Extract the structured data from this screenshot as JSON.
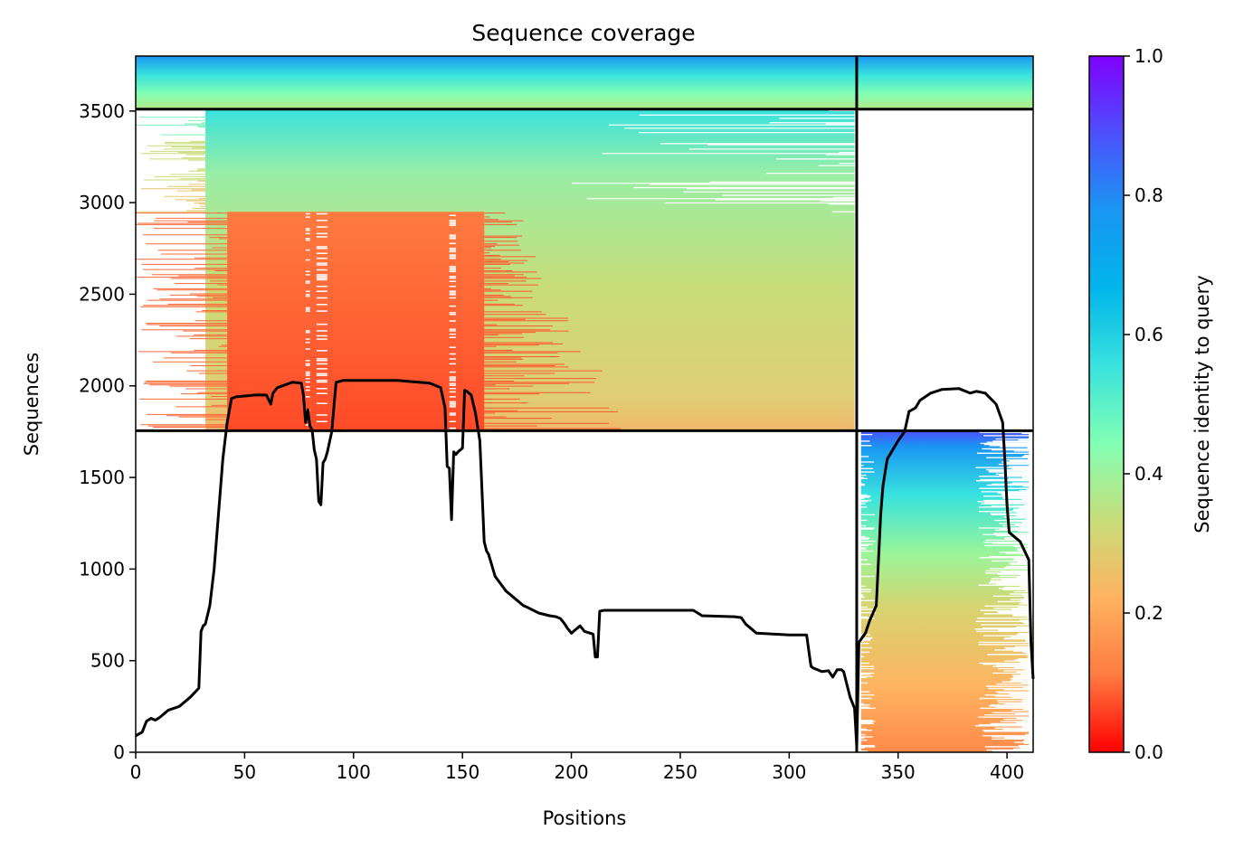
{
  "chart_data": {
    "type": "heatmap",
    "title": "Sequence coverage",
    "xlabel": "Positions",
    "ylabel": "Sequences",
    "xlim": [
      0,
      412
    ],
    "ylim": [
      0,
      3800
    ],
    "xticks": [
      0,
      50,
      100,
      150,
      200,
      250,
      300,
      350,
      400
    ],
    "yticks": [
      0,
      500,
      1000,
      1500,
      2000,
      2500,
      3000,
      3500
    ],
    "colorbar": {
      "label": "Sequence identity to query",
      "colormap": "rainbow_r",
      "range": [
        0.0,
        1.0
      ],
      "ticks": [
        "0.0",
        "0.2",
        "0.4",
        "0.6",
        "0.8",
        "1.0"
      ],
      "stops": [
        "#ff0000",
        "#ff7b41",
        "#ffb360",
        "#c8dd79",
        "#81ffb4",
        "#38e2de",
        "#00b5eb",
        "#1996f3",
        "#4d50fc",
        "#8000ff"
      ]
    },
    "separators": {
      "horizontal": [
        1755,
        3510
      ],
      "vertical": [
        331
      ]
    },
    "coverage_blocks": [
      {
        "rows": [
          1755,
          3510
        ],
        "positions": [
          0,
          331
        ],
        "identity_top": 0.6,
        "identity_bottom": 0.3,
        "note_region": "upper-left block"
      },
      {
        "rows": [
          3510,
          3800
        ],
        "positions": [
          0,
          331
        ],
        "identity_top": 0.8,
        "identity_bottom": 0.45
      },
      {
        "rows": [
          3510,
          3800
        ],
        "positions": [
          331,
          412
        ],
        "identity_top": 0.8,
        "identity_bottom": 0.45
      },
      {
        "rows": [
          1755,
          2950
        ],
        "positions": [
          40,
          162
        ],
        "identity_top": 0.2,
        "identity_bottom": 0.08
      },
      {
        "rows": [
          0,
          1755
        ],
        "positions": [
          331,
          412
        ],
        "identity_top": 0.9,
        "identity_bottom": 0.15
      }
    ],
    "series": [
      {
        "type": "line",
        "color": "#000000",
        "x": [
          0,
          3,
          5,
          7,
          9,
          11,
          15,
          20,
          25,
          29,
          30,
          31,
          32,
          34,
          36,
          38,
          40,
          42,
          44,
          46,
          55,
          60,
          62,
          63,
          65,
          72,
          76,
          77,
          78,
          79,
          80,
          81,
          82,
          83,
          84,
          85,
          86,
          87,
          88,
          90,
          92,
          94,
          95,
          100,
          110,
          120,
          130,
          135,
          140,
          142,
          143,
          144,
          145,
          146,
          147,
          148,
          150,
          151,
          152,
          154,
          156,
          158,
          160,
          161,
          162,
          163,
          165,
          170,
          175,
          178,
          180,
          185,
          190,
          193,
          195,
          197,
          198,
          200,
          204,
          206,
          210,
          211,
          212,
          213,
          215,
          230,
          250,
          256,
          260,
          275,
          278,
          280,
          285,
          300,
          308,
          310,
          311,
          315,
          318,
          320,
          322,
          324,
          325,
          328,
          330,
          331,
          332,
          335,
          337,
          340,
          342,
          343,
          345,
          350,
          353,
          355,
          358,
          360,
          365,
          370,
          378,
          380,
          383,
          386,
          390,
          395,
          398,
          399,
          400,
          401,
          403,
          406,
          408,
          410,
          411,
          412
        ],
        "y": [
          90,
          110,
          170,
          185,
          175,
          190,
          230,
          250,
          300,
          350,
          660,
          690,
          700,
          800,
          1000,
          1300,
          1600,
          1800,
          1930,
          1940,
          1950,
          1950,
          1900,
          1960,
          1990,
          2020,
          2015,
          1950,
          1800,
          1870,
          1780,
          1760,
          1650,
          1600,
          1370,
          1350,
          1580,
          1600,
          1640,
          1750,
          2020,
          2025,
          2030,
          2030,
          2030,
          2030,
          2020,
          2015,
          1990,
          1880,
          1560,
          1550,
          1270,
          1640,
          1625,
          1640,
          1660,
          1975,
          1970,
          1950,
          1850,
          1700,
          1150,
          1100,
          1080,
          1040,
          960,
          880,
          830,
          800,
          790,
          760,
          745,
          740,
          730,
          700,
          680,
          650,
          690,
          660,
          645,
          520,
          520,
          770,
          775,
          775,
          775,
          775,
          745,
          740,
          735,
          700,
          650,
          640,
          640,
          470,
          460,
          440,
          445,
          410,
          450,
          450,
          440,
          300,
          240,
          30,
          600,
          650,
          720,
          800,
          1300,
          1450,
          1600,
          1700,
          1750,
          1860,
          1880,
          1920,
          1960,
          1980,
          1985,
          1975,
          1960,
          1970,
          1960,
          1900,
          1800,
          1600,
          1350,
          1200,
          1180,
          1150,
          1100,
          1050,
          600,
          400
        ]
      }
    ]
  }
}
